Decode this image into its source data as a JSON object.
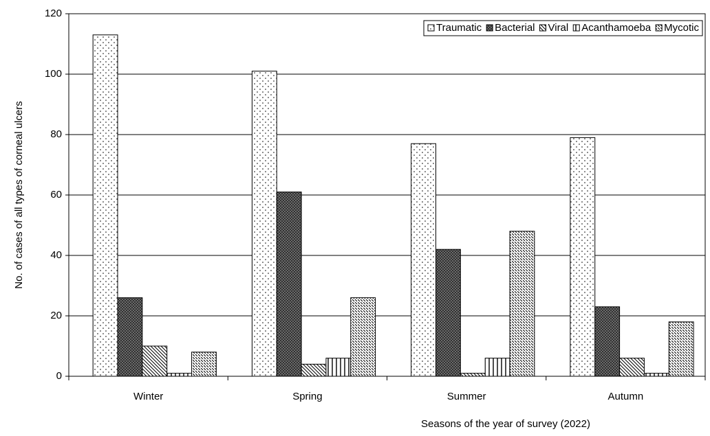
{
  "chart_data": {
    "type": "bar",
    "x_label": "Seasons of the year of survey (2022)",
    "y_label": "No. of cases of all types of corneal ulcers",
    "categories": [
      "Winter",
      "Spring",
      "Summer",
      "Autumn"
    ],
    "series": [
      {
        "name": "Traumatic",
        "color": "#ffffff",
        "pattern": "dots",
        "values": [
          113,
          101,
          77,
          79
        ]
      },
      {
        "name": "Bacterial",
        "color": "#808080",
        "pattern": "crosshatch",
        "values": [
          26,
          61,
          42,
          23
        ]
      },
      {
        "name": "Viral",
        "color": "#ffffff",
        "pattern": "diagonal",
        "values": [
          10,
          4,
          1,
          6
        ]
      },
      {
        "name": "Acanthamoeba",
        "color": "#ffffff",
        "pattern": "vertical",
        "values": [
          1,
          6,
          6,
          1
        ]
      },
      {
        "name": "Mycotic",
        "color": "#ffffff",
        "pattern": "dashed-diagonal",
        "values": [
          8,
          26,
          48,
          18
        ]
      }
    ],
    "ylim": [
      0,
      120
    ],
    "yticks": [
      0,
      20,
      40,
      60,
      80,
      100,
      120
    ],
    "grid": true,
    "legend": "upper right"
  }
}
